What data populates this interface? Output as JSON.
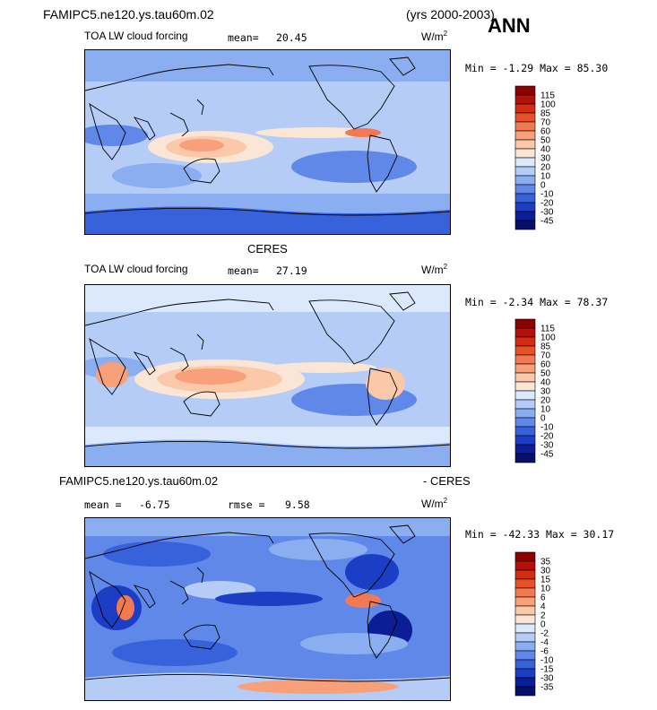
{
  "header": {
    "case_name": "FAMIPC5.ne120.ys.tau60m.02",
    "years": "(yrs 2000-2003)",
    "season": "ANN"
  },
  "panels": [
    {
      "id": "model",
      "field_label": "TOA LW cloud forcing",
      "mean_label": "mean=",
      "mean_value": "20.45",
      "units": "W/m",
      "units_exp": "2",
      "minmax": "Min =  -1.29 Max =  85.30",
      "levels": [
        "115",
        "100",
        "85",
        "70",
        "60",
        "50",
        "40",
        "30",
        "20",
        "10",
        "0",
        "-10",
        "-20",
        "-30",
        "-45"
      ],
      "colors": [
        "#8b0000",
        "#b4100a",
        "#d42c12",
        "#e8502a",
        "#f27a52",
        "#f7a07a",
        "#fbc8aa",
        "#fbe6d6",
        "#dce8fb",
        "#b4ccf6",
        "#8aaef0",
        "#6088e8",
        "#3862dc",
        "#1c3ec4",
        "#0c1e96",
        "#06106a"
      ]
    },
    {
      "id": "obs",
      "title": "CERES",
      "field_label": "TOA LW cloud forcing",
      "mean_label": "mean=",
      "mean_value": "27.19",
      "units": "W/m",
      "units_exp": "2",
      "minmax": "Min =  -2.34 Max =  78.37",
      "levels": [
        "115",
        "100",
        "85",
        "70",
        "60",
        "50",
        "40",
        "30",
        "20",
        "10",
        "0",
        "-10",
        "-20",
        "-30",
        "-45"
      ],
      "colors": [
        "#8b0000",
        "#b4100a",
        "#d42c12",
        "#e8502a",
        "#f27a52",
        "#f7a07a",
        "#fbc8aa",
        "#fbe6d6",
        "#dce8fb",
        "#b4ccf6",
        "#8aaef0",
        "#6088e8",
        "#3862dc",
        "#1c3ec4",
        "#0c1e96",
        "#06106a"
      ]
    },
    {
      "id": "diff",
      "title_left": "FAMIPC5.ne120.ys.tau60m.02",
      "title_right": "- CERES",
      "mean_label": "mean =",
      "mean_value": "-6.75",
      "rmse_label": "rmse =",
      "rmse_value": "9.58",
      "units": "W/m",
      "units_exp": "2",
      "minmax": "Min = -42.33 Max =  30.17",
      "levels": [
        "35",
        "30",
        "15",
        "10",
        "6",
        "4",
        "2",
        "0",
        "-2",
        "-4",
        "-6",
        "-10",
        "-15",
        "-30",
        "-35"
      ],
      "colors": [
        "#8b0000",
        "#b4100a",
        "#d42c12",
        "#e8502a",
        "#f27a52",
        "#f7a07a",
        "#fbc8aa",
        "#fbe6d6",
        "#dce8fb",
        "#b4ccf6",
        "#8aaef0",
        "#6088e8",
        "#3862dc",
        "#1c3ec4",
        "#0c1e96",
        "#06106a"
      ]
    }
  ],
  "chart_data": [
    {
      "type": "heatmap",
      "title": "FAMIPC5.ne120.ys.tau60m.02 (yrs 2000-2003) ANN",
      "subtitle": "TOA LW cloud forcing",
      "mean": 20.45,
      "units": "W/m2",
      "min": -1.29,
      "max": 85.3,
      "contour_levels": [
        -45,
        -30,
        -20,
        -10,
        0,
        10,
        20,
        30,
        40,
        50,
        60,
        70,
        85,
        100,
        115
      ]
    },
    {
      "type": "heatmap",
      "title": "CERES",
      "subtitle": "TOA LW cloud forcing",
      "mean": 27.19,
      "units": "W/m2",
      "min": -2.34,
      "max": 78.37,
      "contour_levels": [
        -45,
        -30,
        -20,
        -10,
        0,
        10,
        20,
        30,
        40,
        50,
        60,
        70,
        85,
        100,
        115
      ]
    },
    {
      "type": "heatmap",
      "title": "FAMIPC5.ne120.ys.tau60m.02 - CERES",
      "mean": -6.75,
      "rmse": 9.58,
      "units": "W/m2",
      "min": -42.33,
      "max": 30.17,
      "contour_levels": [
        -35,
        -30,
        -15,
        -10,
        -6,
        -4,
        -2,
        0,
        2,
        4,
        6,
        10,
        15,
        30,
        35
      ]
    }
  ]
}
